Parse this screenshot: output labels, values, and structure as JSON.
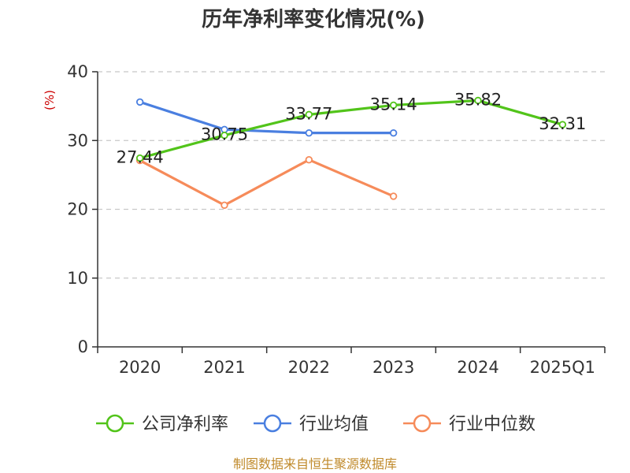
{
  "chart_data": {
    "type": "line",
    "title": "历年净利率变化情况(%)",
    "ylabel": "(%)",
    "xlabel": "",
    "categories": [
      "2020",
      "2021",
      "2022",
      "2023",
      "2024",
      "2025Q1"
    ],
    "ylim": [
      0,
      40
    ],
    "yticks": [
      0,
      10,
      20,
      30,
      40
    ],
    "grid": true,
    "legend_position": "bottom",
    "series": [
      {
        "name": "公司净利率",
        "color": "#52c41a",
        "values": [
          27.44,
          30.75,
          33.77,
          35.14,
          35.82,
          32.31
        ],
        "labels": [
          "27.44",
          "30.75",
          "33.77",
          "35.14",
          "35.82",
          "32.31"
        ]
      },
      {
        "name": "行业均值",
        "color": "#4a7fe0",
        "values": [
          35.6,
          31.6,
          31.1,
          31.1,
          null,
          null
        ]
      },
      {
        "name": "行业中位数",
        "color": "#f68b5a",
        "values": [
          27.1,
          20.6,
          27.2,
          21.9,
          null,
          null
        ]
      }
    ]
  },
  "footer": "制图数据来自恒生聚源数据库"
}
